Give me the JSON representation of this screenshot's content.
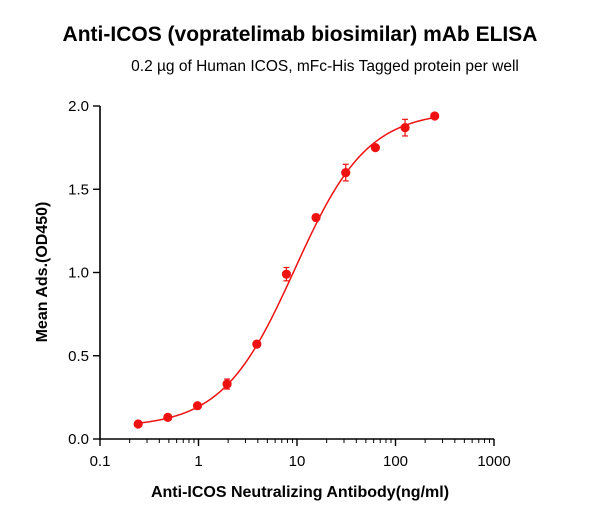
{
  "chart_data": {
    "type": "scatter",
    "title": "Anti-ICOS (vopratelimab biosimilar) mAb ELISA",
    "subtitle": "0.2 µg of Human ICOS, mFc-His Tagged protein per well",
    "xlabel": "Anti-ICOS Neutralizing Antibody(ng/ml)",
    "ylabel": "Mean Ads.(OD450)",
    "xscale": "log",
    "xlim": [
      0.1,
      1000
    ],
    "ylim": [
      0,
      2.0
    ],
    "x_ticks": [
      0.1,
      1,
      10,
      100,
      1000
    ],
    "x_tick_labels": [
      "0.1",
      "1",
      "10",
      "100",
      "1000"
    ],
    "y_ticks": [
      0,
      0.5,
      1.0,
      1.5,
      2.0
    ],
    "y_tick_labels": [
      "0.0",
      "0.5",
      "1.0",
      "1.5",
      "2.0"
    ],
    "color": "#ee1111",
    "grid": false,
    "fit_curve": "four-parameter logistic",
    "series": [
      {
        "x": [
          0.244,
          0.488,
          0.977,
          1.95,
          3.91,
          7.81,
          15.6,
          31.25,
          62.5,
          125,
          250
        ],
        "y": [
          0.09,
          0.13,
          0.2,
          0.33,
          0.57,
          0.99,
          1.33,
          1.6,
          1.75,
          1.87,
          1.94
        ],
        "error": [
          0.01,
          0.01,
          0.01,
          0.03,
          0.01,
          0.04,
          0.02,
          0.05,
          0.01,
          0.05,
          0.01
        ]
      }
    ]
  }
}
